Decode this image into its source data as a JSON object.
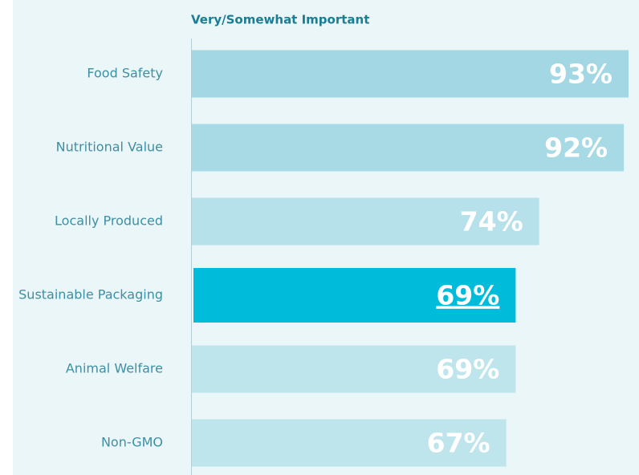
{
  "chart_data": {
    "type": "bar",
    "orientation": "horizontal",
    "title": "Very/Somewhat Important",
    "categories": [
      "Food Safety",
      "Nutritional Value",
      "Locally Produced",
      "Sustainable Packaging",
      "Animal Welfare",
      "Non-GMO"
    ],
    "values": [
      93,
      92,
      74,
      69,
      69,
      67
    ],
    "value_labels": [
      "93%",
      "92%",
      "74%",
      "69%",
      "69%",
      "67%"
    ],
    "colors": [
      "#a3d7e3",
      "#a8dae5",
      "#b6e1ea",
      "#00bcdb",
      "#bfe5ec",
      "#bfe5ec"
    ],
    "highlight_index": 3
  }
}
